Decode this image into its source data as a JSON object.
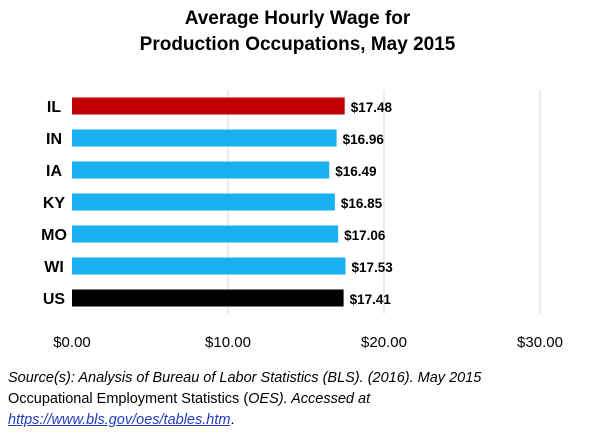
{
  "chart_data": {
    "type": "bar",
    "orientation": "horizontal",
    "title_line1": "Average Hourly Wage for",
    "title_line2": "Production Occupations, May 2015",
    "categories": [
      "IL",
      "IN",
      "IA",
      "KY",
      "MO",
      "WI",
      "US"
    ],
    "values": [
      17.48,
      16.96,
      16.49,
      16.85,
      17.06,
      17.53,
      17.41
    ],
    "value_labels": [
      "$17.48",
      "$16.96",
      "$16.49",
      "$16.85",
      "$17.06",
      "$17.53",
      "$17.41"
    ],
    "bar_colors": [
      "#c00000",
      "#17b0f0",
      "#17b0f0",
      "#17b0f0",
      "#17b0f0",
      "#17b0f0",
      "#000000"
    ],
    "xlim": [
      0,
      30
    ],
    "xticks": [
      0,
      10,
      20,
      30
    ],
    "xtick_labels": [
      "$0.00",
      "$10.00",
      "$20.00",
      "$30.00"
    ],
    "grid": true,
    "legend": "none"
  },
  "source": {
    "line1": "Source(s): Analysis of Bureau of Labor Statistics (BLS). (2016). May 2015",
    "line2a": "Occupational Employment Statistics (",
    "line2b": "OES",
    "line2c": "). Accessed at",
    "link": "https://www.bls.gov/oes/tables.htm",
    "line3_end": "."
  }
}
